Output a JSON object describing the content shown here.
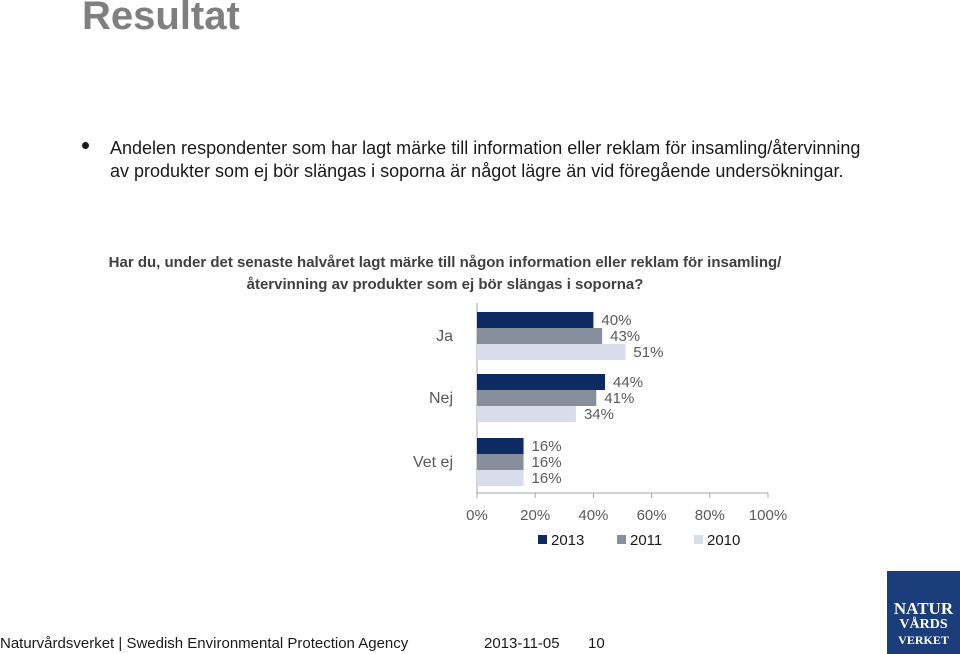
{
  "slide": {
    "title": "Resultat",
    "bullet": "Andelen respondenter som har lagt märke till information eller reklam för insamling/återvinning av produkter som ej bör slängas i soporna är något lägre än vid föregående undersökningar.",
    "question": "Har du, under det senaste halvåret lagt märke till någon information eller reklam för insamling/återvinning av produkter som ej bör slängas i soporna?"
  },
  "chart_data": {
    "type": "bar",
    "orientation": "horizontal",
    "categories": [
      "Ja",
      "Nej",
      "Vet ej"
    ],
    "series": [
      {
        "name": "2013",
        "color": "#0d2a63",
        "values": [
          40,
          44,
          16
        ]
      },
      {
        "name": "2011",
        "color": "#878f9c",
        "values": [
          43,
          41,
          16
        ]
      },
      {
        "name": "2010",
        "color": "#d8dee9",
        "values": [
          51,
          34,
          16
        ]
      }
    ],
    "value_suffix": "%",
    "xlim": [
      0,
      100
    ],
    "x_ticks": [
      "0%",
      "20%",
      "40%",
      "60%",
      "80%",
      "100%"
    ],
    "legend_position": "bottom",
    "grid": false
  },
  "footer": {
    "organization": "Naturvårdsverket | Swedish Environmental Protection Agency",
    "date": "2013-11-05",
    "page": "10"
  },
  "logo": {
    "line1": "NATUR",
    "line2": "VÅRDS",
    "line3": "VERKET",
    "color": "#1b3d7a"
  }
}
